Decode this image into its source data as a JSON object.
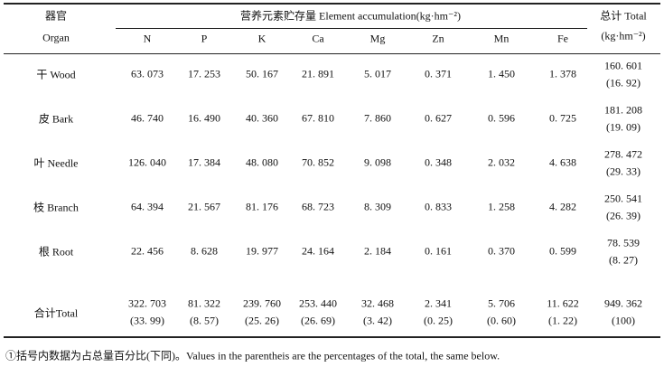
{
  "header": {
    "organ_zh": "器官",
    "organ_en": "Organ",
    "group_title": "营养元素贮存量 Element accumulation(kg·hm⁻²)",
    "total_title": "总计 Total",
    "total_unit": "(kg·hm⁻²)",
    "columns": [
      "N",
      "P",
      "K",
      "Ca",
      "Mg",
      "Zn",
      "Mn",
      "Fe"
    ]
  },
  "rows": [
    {
      "organ": "干 Wood",
      "values": [
        "63. 073",
        "17. 253",
        "50. 167",
        "21. 891",
        "5. 017",
        "0. 371",
        "1. 450",
        "1. 378"
      ],
      "total": "160. 601",
      "total_pct": "(16. 92)"
    },
    {
      "organ": "皮 Bark",
      "values": [
        "46. 740",
        "16. 490",
        "40. 360",
        "67. 810",
        "7. 860",
        "0. 627",
        "0. 596",
        "0. 725"
      ],
      "total": "181. 208",
      "total_pct": "(19. 09)"
    },
    {
      "organ": "叶 Needle",
      "values": [
        "126. 040",
        "17. 384",
        "48. 080",
        "70. 852",
        "9. 098",
        "0. 348",
        "2. 032",
        "4. 638"
      ],
      "total": "278. 472",
      "total_pct": "(29. 33)"
    },
    {
      "organ": "枝 Branch",
      "values": [
        "64. 394",
        "21. 567",
        "81. 176",
        "68. 723",
        "8. 309",
        "0. 833",
        "1. 258",
        "4. 282"
      ],
      "total": "250. 541",
      "total_pct": "(26. 39)"
    },
    {
      "organ": "根 Root",
      "values": [
        "22. 456",
        "8. 628",
        "19. 977",
        "24. 164",
        "2. 184",
        "0. 161",
        "0. 370",
        "0. 599"
      ],
      "total": "78. 539",
      "total_pct": "(8. 27)"
    }
  ],
  "total_row": {
    "label": "合计Total",
    "values": [
      "322. 703",
      "81. 322",
      "239. 760",
      "253. 440",
      "32. 468",
      "2. 341",
      "5. 706",
      "11. 622"
    ],
    "pcts": [
      "(33. 99)",
      "(8. 57)",
      "(25. 26)",
      "(26. 69)",
      "(3. 42)",
      "(0. 25)",
      "(0. 60)",
      "(1. 22)"
    ],
    "total": "949. 362",
    "total_pct": "(100)"
  },
  "footnote": "①括号内数据为占总量百分比(下同)。Values in the parentheis are the percentages of the total, the same below."
}
